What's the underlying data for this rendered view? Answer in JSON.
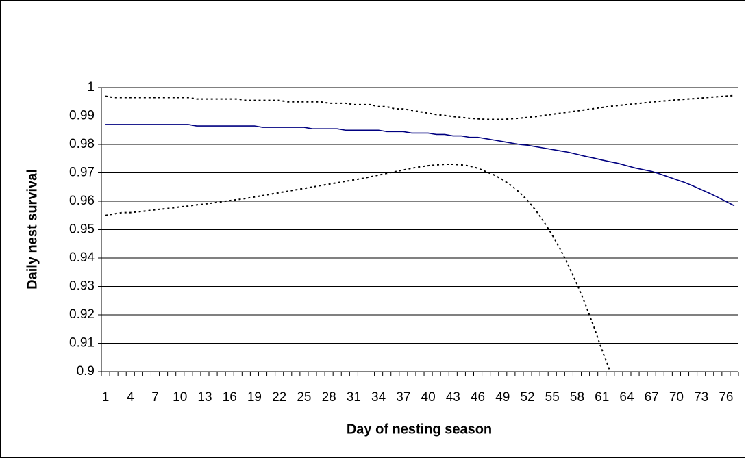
{
  "chart_data": {
    "type": "line",
    "x_label": "Day of nesting season",
    "y_label": "Daily nest survival",
    "categories": [
      "1",
      null,
      null,
      "4",
      null,
      null,
      "7",
      null,
      null,
      "10",
      null,
      null,
      "13",
      null,
      null,
      "16",
      null,
      null,
      "19",
      null,
      null,
      "22",
      null,
      null,
      "25",
      null,
      null,
      "28",
      null,
      null,
      "31",
      null,
      null,
      "34",
      null,
      null,
      "37",
      null,
      null,
      "40",
      null,
      null,
      "43",
      null,
      null,
      "46",
      null,
      null,
      "49",
      null,
      null,
      "52",
      null,
      null,
      "55",
      null,
      null,
      "58",
      null,
      null,
      "61",
      null,
      null,
      "64",
      null,
      null,
      "67",
      null,
      null,
      "70",
      null,
      null,
      "73",
      null,
      null,
      "76",
      null
    ],
    "series": [
      {
        "color": "#000080",
        "style": "solid",
        "values": [
          0.987,
          0.987,
          0.987,
          0.987,
          0.987,
          0.987,
          0.987,
          0.987,
          0.987,
          0.987,
          0.987,
          0.9865,
          0.9865,
          0.9865,
          0.9865,
          0.9865,
          0.9865,
          0.9865,
          0.9865,
          0.986,
          0.986,
          0.986,
          0.986,
          0.986,
          0.986,
          0.9855,
          0.9855,
          0.9855,
          0.9855,
          0.985,
          0.985,
          0.985,
          0.985,
          0.985,
          0.9845,
          0.9845,
          0.9845,
          0.984,
          0.984,
          0.984,
          0.9835,
          0.9835,
          0.983,
          0.983,
          0.9825,
          0.9825,
          0.982,
          0.9815,
          0.981,
          0.9805,
          0.98,
          0.9797,
          0.9792,
          0.9787,
          0.9782,
          0.9777,
          0.9772,
          0.9765,
          0.9758,
          0.9752,
          0.9745,
          0.9739,
          0.9733,
          0.9725,
          0.9717,
          0.9711,
          0.9705,
          0.9696,
          0.9686,
          0.9676,
          0.9666,
          0.9654,
          0.9641,
          0.9628,
          0.9614,
          0.9599,
          0.9584
        ]
      },
      {
        "color": "#000000",
        "style": "dotted",
        "values": [
          0.997,
          0.9965,
          0.9965,
          0.9965,
          0.9965,
          0.9965,
          0.9965,
          0.9965,
          0.9965,
          0.9965,
          0.9965,
          0.996,
          0.996,
          0.996,
          0.996,
          0.996,
          0.996,
          0.9955,
          0.9955,
          0.9955,
          0.9955,
          0.9955,
          0.995,
          0.995,
          0.995,
          0.995,
          0.995,
          0.9945,
          0.9945,
          0.9945,
          0.994,
          0.994,
          0.994,
          0.9933,
          0.9933,
          0.9925,
          0.9925,
          0.992,
          0.9915,
          0.991,
          0.9905,
          0.9902,
          0.9898,
          0.9895,
          0.9892,
          0.989,
          0.9888,
          0.9888,
          0.9888,
          0.989,
          0.9892,
          0.9895,
          0.9898,
          0.9902,
          0.9906,
          0.991,
          0.9914,
          0.9918,
          0.9922,
          0.9926,
          0.993,
          0.9934,
          0.9937,
          0.994,
          0.9943,
          0.9946,
          0.9949,
          0.9952,
          0.9954,
          0.9957,
          0.9959,
          0.9961,
          0.9963,
          0.9966,
          0.9968,
          0.997,
          0.9972
        ]
      },
      {
        "color": "#000000",
        "style": "dotted",
        "values": [
          0.955,
          0.9555,
          0.956,
          0.956,
          0.9563,
          0.9566,
          0.957,
          0.9573,
          0.9576,
          0.958,
          0.9583,
          0.9587,
          0.959,
          0.9594,
          0.9598,
          0.9602,
          0.9606,
          0.961,
          0.9615,
          0.962,
          0.9625,
          0.963,
          0.9635,
          0.964,
          0.9645,
          0.965,
          0.9655,
          0.966,
          0.9665,
          0.967,
          0.9675,
          0.968,
          0.9686,
          0.9692,
          0.9698,
          0.9704,
          0.971,
          0.9716,
          0.9721,
          0.9725,
          0.9728,
          0.973,
          0.973,
          0.9728,
          0.9724,
          0.9716,
          0.9704,
          0.9692,
          0.9676,
          0.9656,
          0.9632,
          0.9603,
          0.9568,
          0.9527,
          0.9481,
          0.9429,
          0.9371,
          0.9307,
          0.9237,
          0.916,
          0.9077,
          0.9,
          null,
          null,
          null,
          null,
          null,
          null,
          null,
          null,
          null,
          null,
          null,
          null,
          null,
          null,
          null
        ]
      }
    ],
    "ylim": [
      0.9,
      1
    ],
    "yticks": [
      0.9,
      0.91,
      0.92,
      0.93,
      0.94,
      0.95,
      0.96,
      0.97,
      0.98,
      0.99,
      1
    ],
    "grid": true
  }
}
